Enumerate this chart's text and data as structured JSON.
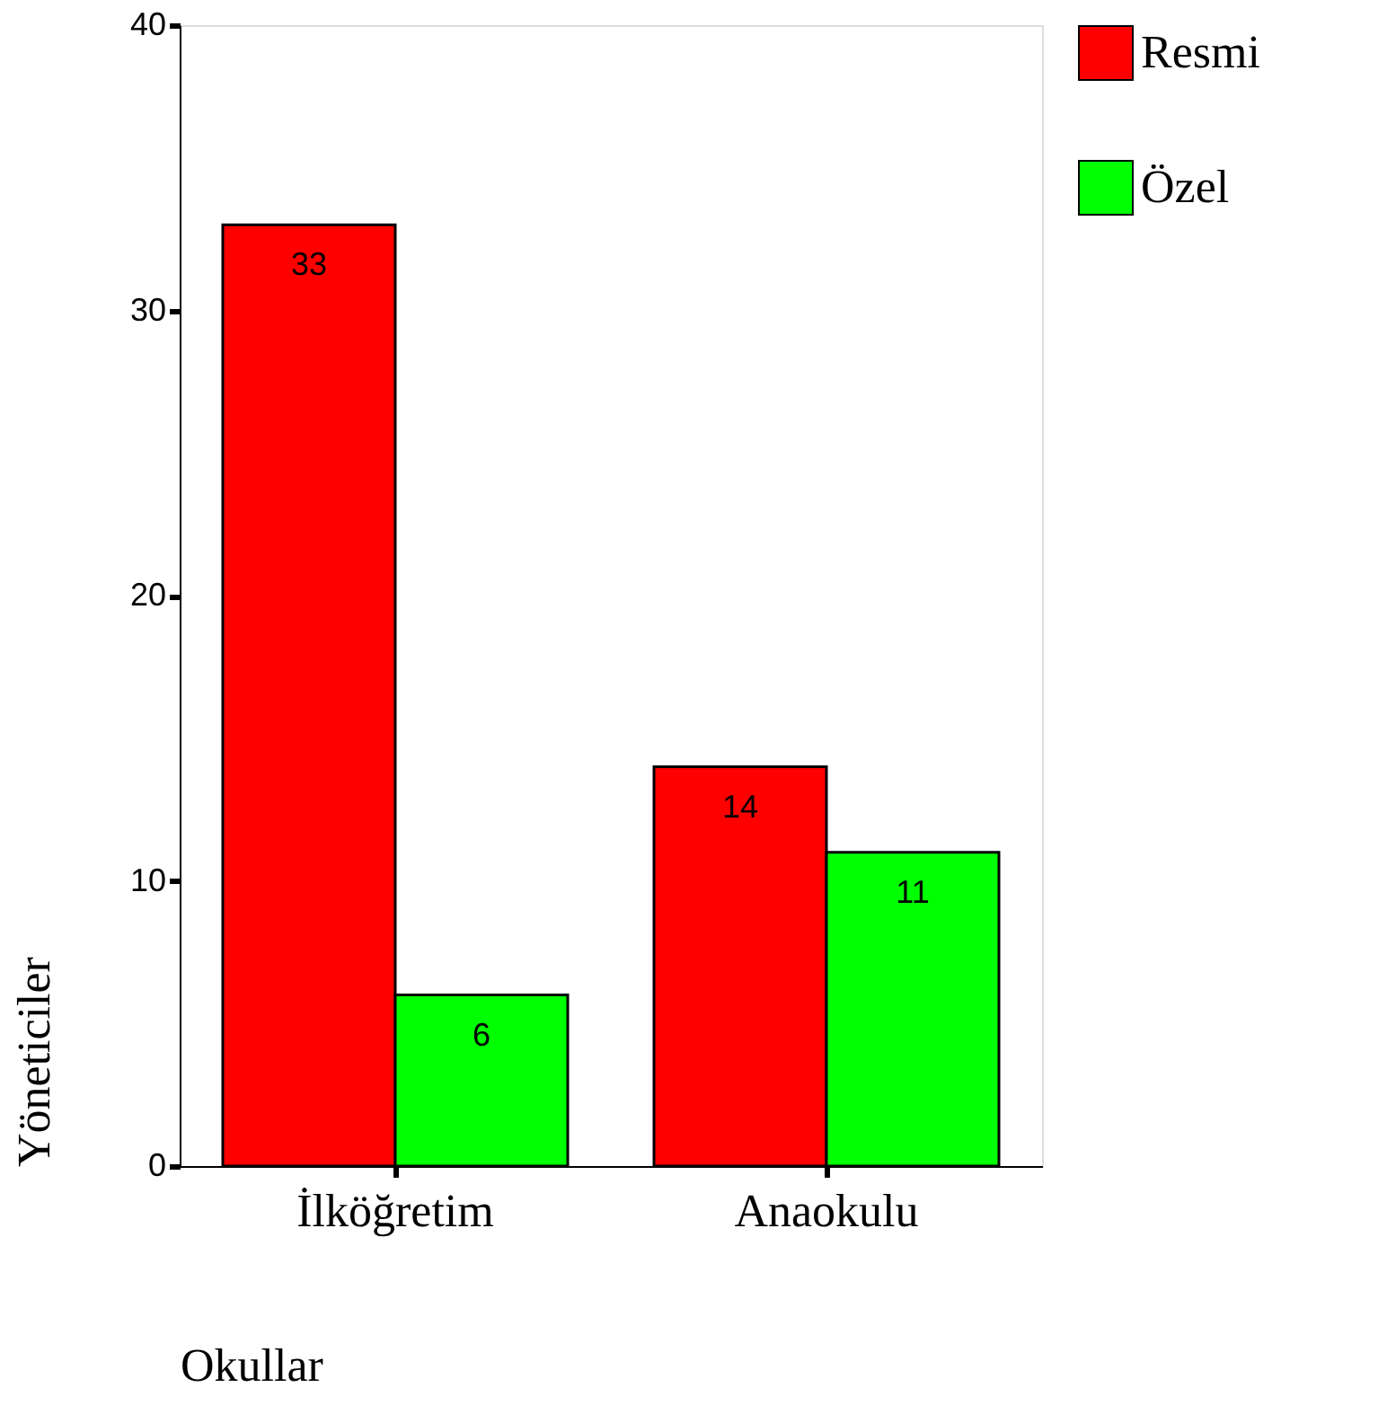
{
  "chart_data": {
    "type": "bar",
    "xlabel": "Okullar",
    "ylabel": "Yöneticiler",
    "categories": [
      "İlköğretim",
      "Anaokulu"
    ],
    "series": [
      {
        "name": "Resmi",
        "color": "#ff0000",
        "values": [
          33,
          14
        ]
      },
      {
        "name": "Özel",
        "color": "#00ff00",
        "values": [
          6,
          11
        ]
      }
    ],
    "ylim": [
      0,
      40
    ],
    "yticks": [
      0,
      10,
      20,
      30,
      40
    ],
    "grid": false,
    "legend": "right",
    "data_labels": true
  }
}
